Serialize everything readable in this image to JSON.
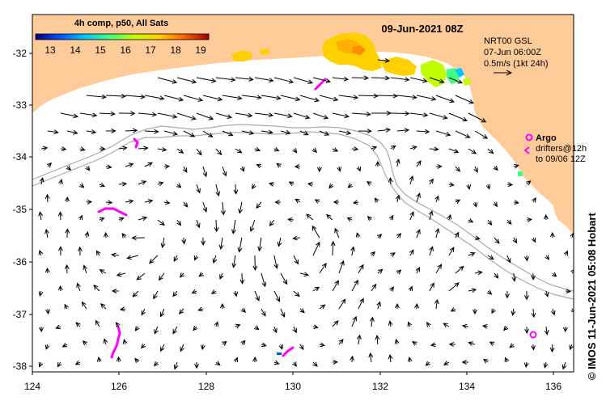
{
  "title": "09-Jun-2021 08Z",
  "colorbar": {
    "label": "4h comp, p50, All Sats",
    "ticks": [
      "13",
      "14",
      "15",
      "16",
      "17",
      "18",
      "19"
    ],
    "colors": [
      "#000080",
      "#0050ff",
      "#00c8ff",
      "#40ff80",
      "#c0ff00",
      "#ffd000",
      "#ff6000",
      "#a00000"
    ]
  },
  "legend": {
    "model": "NRT00 GSL",
    "date": "07-Jun 06:00Z",
    "scale": "0.5m/s (1kt 24h)"
  },
  "argo": {
    "label": "Argo",
    "drifters_line1": "drifters@12h",
    "drifters_line2": "to 09/06 12Z",
    "color": "#ff00ff"
  },
  "credit": "© IMOS 11-Jun-2021 05:08 Hobart",
  "x_ticks": [
    "124",
    "126",
    "128",
    "130",
    "132",
    "134",
    "136"
  ],
  "y_ticks": [
    "-32",
    "-33",
    "-34",
    "-35",
    "-36",
    "-37",
    "-38"
  ],
  "colors": {
    "land": "#ffcc99",
    "ocean": "#ffffff",
    "bathy": "#aaaaaa",
    "arrow": "#000000"
  }
}
